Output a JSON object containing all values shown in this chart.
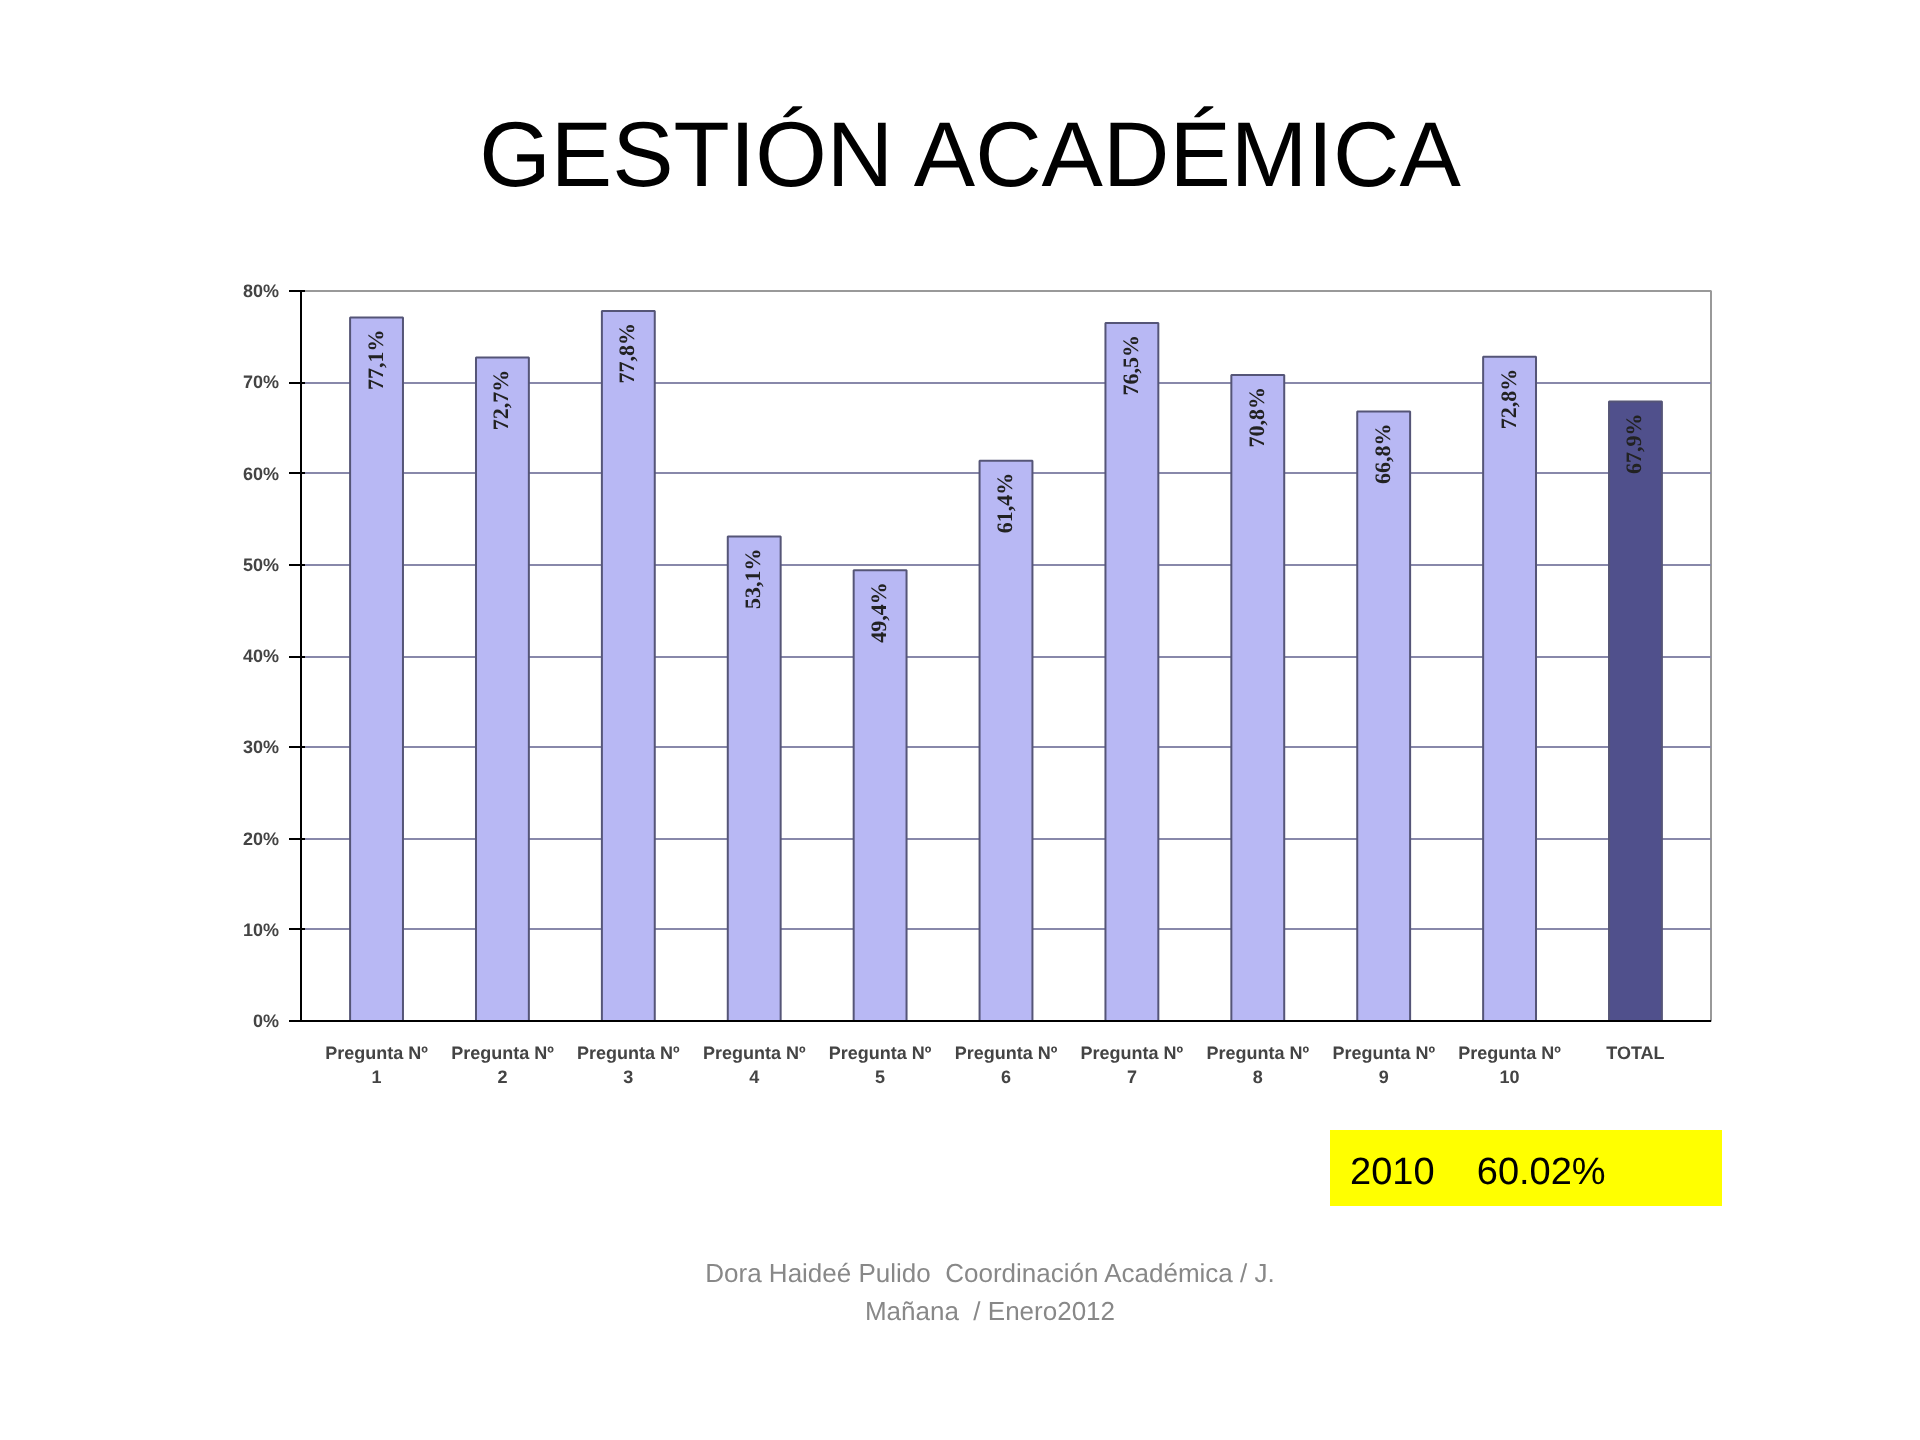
{
  "chart_data": {
    "type": "bar",
    "title": "GESTIÓN ACADÉMICA",
    "categories": [
      "Pregunta Nº 1",
      "Pregunta Nº 2",
      "Pregunta Nº 3",
      "Pregunta Nº 4",
      "Pregunta Nº 5",
      "Pregunta Nº 6",
      "Pregunta Nº 7",
      "Pregunta Nº 8",
      "Pregunta Nº 9",
      "Pregunta Nº 10",
      "TOTAL"
    ],
    "values": [
      77.1,
      72.7,
      77.8,
      53.1,
      49.4,
      61.4,
      76.5,
      70.8,
      66.8,
      72.8,
      67.9
    ],
    "value_labels": [
      "77,1%",
      "72,7%",
      "77,8%",
      "53,1%",
      "49,4%",
      "61,4%",
      "76,5%",
      "70,8%",
      "66,8%",
      "72,8%",
      "67,9%"
    ],
    "colors": [
      "#b8b8f4",
      "#b8b8f4",
      "#b8b8f4",
      "#b8b8f4",
      "#b8b8f4",
      "#b8b8f4",
      "#b8b8f4",
      "#b8b8f4",
      "#b8b8f4",
      "#b8b8f4",
      "#50508c"
    ],
    "ylim": [
      0,
      80
    ],
    "yticks": [
      {
        "value": 0,
        "label": "0%"
      },
      {
        "value": 10,
        "label": "10%"
      },
      {
        "value": 20,
        "label": "20%"
      },
      {
        "value": 30,
        "label": "30%"
      },
      {
        "value": 40,
        "label": "40%"
      },
      {
        "value": 50,
        "label": "50%"
      },
      {
        "value": 60,
        "label": "60%"
      },
      {
        "value": 70,
        "label": "70%"
      },
      {
        "value": 80,
        "label": "80%"
      }
    ],
    "grid": "y",
    "annotations": [
      "2010    60.02%",
      "Dora Haideé Pulido  Coordinación Académica / J. Mañana  / Enero2012"
    ]
  }
}
